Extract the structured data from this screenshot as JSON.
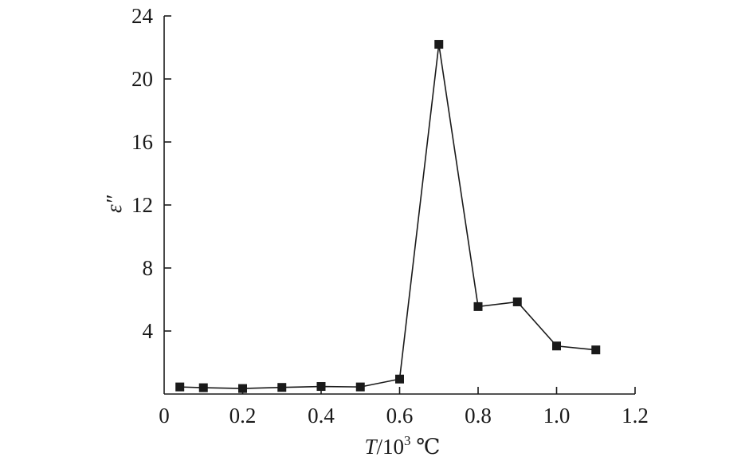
{
  "chart_data": {
    "type": "line",
    "x": [
      0.04,
      0.1,
      0.2,
      0.3,
      0.4,
      0.5,
      0.6,
      0.7,
      0.8,
      0.9,
      1.0,
      1.1
    ],
    "series": [
      {
        "values": [
          0.45,
          0.4,
          0.35,
          0.42,
          0.48,
          0.45,
          0.95,
          22.2,
          5.55,
          5.85,
          3.05,
          2.8
        ]
      }
    ],
    "xlim": [
      0,
      1.2
    ],
    "ylim": [
      0,
      24
    ],
    "xticks": [
      0,
      0.2,
      0.4,
      0.6,
      0.8,
      1.0,
      1.2
    ],
    "xtick_labels": [
      "0",
      "0.2",
      "0.4",
      "0.6",
      "0.8",
      "1.0",
      "1.2"
    ],
    "yticks": [
      4,
      8,
      12,
      16,
      20,
      24
    ],
    "ytick_labels": [
      "4",
      "8",
      "12",
      "16",
      "20",
      "24"
    ],
    "xlabel": {
      "var": "T",
      "rest": "/10",
      "sup": "3",
      "unit": " ℃"
    },
    "ylabel": "ε″",
    "grid": false,
    "marker": "square",
    "colors": {
      "line": "#1a1a1a",
      "marker": "#1a1a1a",
      "axis": "#1a1a1a"
    }
  }
}
